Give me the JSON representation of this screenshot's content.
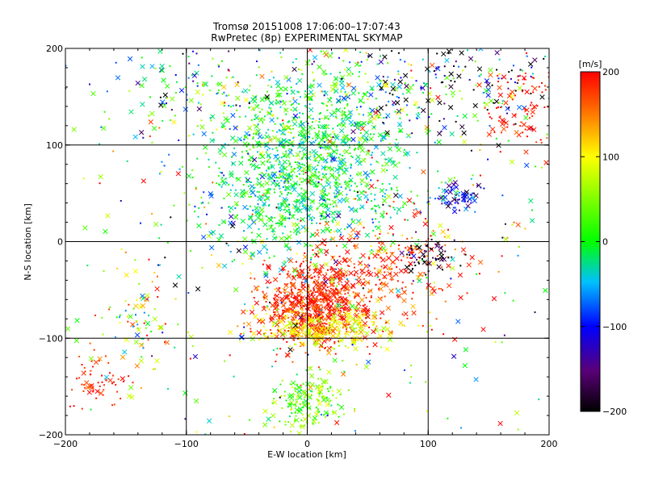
{
  "chart_data": {
    "type": "scatter",
    "title": "Tromsø 20151008 17:06:00–17:07:43",
    "subtitle": "RwPretec (8p) EXPERIMENTAL SKYMAP",
    "xlabel": "E-W location [km]",
    "ylabel": "N-S location [km]",
    "xlim": [
      -200,
      200
    ],
    "ylim": [
      -200,
      200
    ],
    "x_ticks": [
      -200,
      -100,
      0,
      100,
      200
    ],
    "y_ticks": [
      -200,
      -100,
      0,
      100,
      200
    ],
    "grid": true,
    "colorbar": {
      "label": "[m/s]",
      "range": [
        -200,
        200
      ],
      "ticks": [
        -200,
        -100,
        0,
        100,
        200
      ],
      "colormap": "rainbow (black-purple-blue-cyan-green-yellow-red)"
    },
    "markers": [
      "dot",
      "x"
    ],
    "clusters": [
      {
        "x": -5,
        "y": 60,
        "sx": 40,
        "sy": 35,
        "n": 900,
        "v": -10,
        "vs": 35
      },
      {
        "x": 10,
        "y": 130,
        "sx": 45,
        "sy": 30,
        "n": 450,
        "v": 5,
        "vs": 45
      },
      {
        "x": 5,
        "y": -65,
        "sx": 22,
        "sy": 22,
        "n": 700,
        "v": 185,
        "vs": 20
      },
      {
        "x": 10,
        "y": -90,
        "sx": 30,
        "sy": 10,
        "n": 250,
        "v": 95,
        "vs": 25
      },
      {
        "x": 60,
        "y": -30,
        "sx": 35,
        "sy": 30,
        "n": 300,
        "v": 175,
        "vs": 40
      },
      {
        "x": 0,
        "y": -165,
        "sx": 15,
        "sy": 15,
        "n": 180,
        "v": 40,
        "vs": 30
      },
      {
        "x": 120,
        "y": 160,
        "sx": 50,
        "sy": 30,
        "n": 250,
        "v": -100,
        "vs": 150
      },
      {
        "x": 175,
        "y": 140,
        "sx": 15,
        "sy": 20,
        "n": 90,
        "v": 190,
        "vs": 15
      },
      {
        "x": 125,
        "y": 45,
        "sx": 10,
        "sy": 8,
        "n": 70,
        "v": -110,
        "vs": 40
      },
      {
        "x": 100,
        "y": -15,
        "sx": 12,
        "sy": 10,
        "n": 60,
        "v": -180,
        "vs": 30
      },
      {
        "x": -175,
        "y": -145,
        "sx": 15,
        "sy": 15,
        "n": 60,
        "v": 185,
        "vs": 15
      },
      {
        "x": -140,
        "y": -90,
        "sx": 15,
        "sy": 30,
        "n": 80,
        "v": 60,
        "vs": 100
      },
      {
        "x": -100,
        "y": 160,
        "sx": 40,
        "sy": 30,
        "n": 120,
        "v": -20,
        "vs": 90
      },
      {
        "x": 0,
        "y": 0,
        "sx": 120,
        "sy": 120,
        "n": 500,
        "v": 20,
        "vs": 120
      }
    ]
  }
}
